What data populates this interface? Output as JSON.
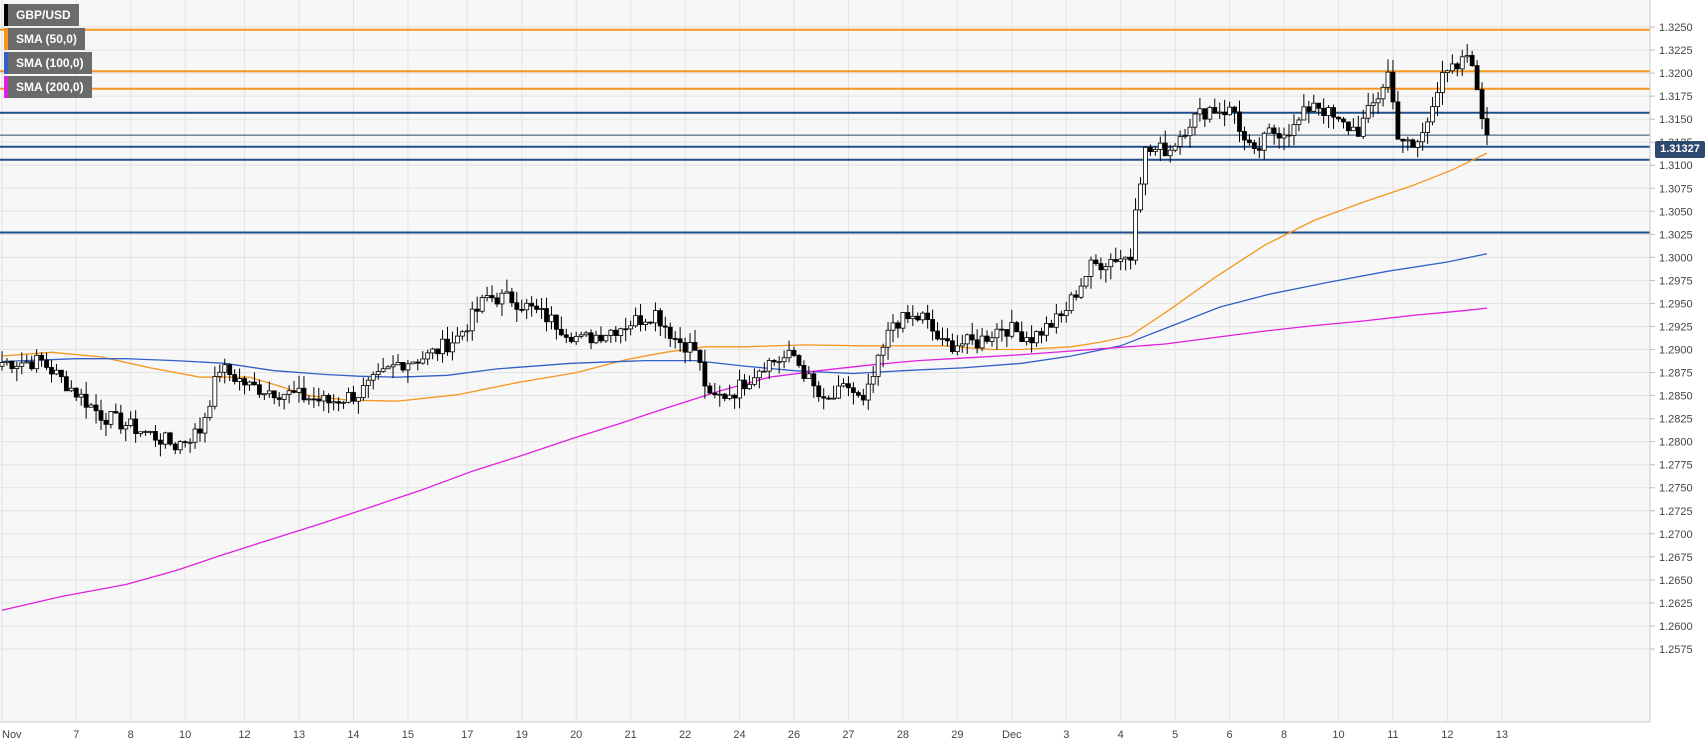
{
  "symbol": "GBP/USD",
  "legend": [
    {
      "label": "GBP/USD",
      "color": "#000000"
    },
    {
      "label": "SMA (50,0)",
      "color": "#f5961e"
    },
    {
      "label": "SMA (100,0)",
      "color": "#3060c8"
    },
    {
      "label": "SMA (200,0)",
      "color": "#e020e0"
    }
  ],
  "last_price_label": "1.31327",
  "chart_data": {
    "type": "candlestick",
    "title": "GBP/USD",
    "ylim": [
      1.2565,
      1.3275
    ],
    "grid": true,
    "y_ticks": [
      "1.3250",
      "1.3225",
      "1.3200",
      "1.3175",
      "1.3150",
      "1.3125",
      "1.3100",
      "1.3075",
      "1.3050",
      "1.3025",
      "1.3000",
      "1.2975",
      "1.2950",
      "1.2925",
      "1.2900",
      "1.2875",
      "1.2850",
      "1.2825",
      "1.2800",
      "1.2775",
      "1.2750",
      "1.2725",
      "1.2700",
      "1.2675",
      "1.2650",
      "1.2625",
      "1.2600",
      "1.2575"
    ],
    "x_ticks": [
      {
        "label": "Nov",
        "i": 0
      },
      {
        "label": "7",
        "i": 15
      },
      {
        "label": "8",
        "i": 26
      },
      {
        "label": "10",
        "i": 37
      },
      {
        "label": "12",
        "i": 49
      },
      {
        "label": "13",
        "i": 60
      },
      {
        "label": "14",
        "i": 71
      },
      {
        "label": "15",
        "i": 82
      },
      {
        "label": "17",
        "i": 94
      },
      {
        "label": "19",
        "i": 105
      },
      {
        "label": "20",
        "i": 116
      },
      {
        "label": "21",
        "i": 127
      },
      {
        "label": "22",
        "i": 138
      },
      {
        "label": "24",
        "i": 149
      },
      {
        "label": "26",
        "i": 160
      },
      {
        "label": "27",
        "i": 171
      },
      {
        "label": "28",
        "i": 182
      },
      {
        "label": "29",
        "i": 193
      },
      {
        "label": "Dec",
        "i": 204
      },
      {
        "label": "3",
        "i": 215
      },
      {
        "label": "4",
        "i": 226
      },
      {
        "label": "5",
        "i": 237
      },
      {
        "label": "6",
        "i": 248
      },
      {
        "label": "8",
        "i": 259
      },
      {
        "label": "10",
        "i": 270
      },
      {
        "label": "11",
        "i": 281
      },
      {
        "label": "12",
        "i": 292
      },
      {
        "label": "13",
        "i": 303
      }
    ],
    "horizontal_levels": [
      {
        "value": 1.3247,
        "color": "#f5961e"
      },
      {
        "value": 1.3202,
        "color": "#f5961e"
      },
      {
        "value": 1.3183,
        "color": "#f5961e"
      },
      {
        "value": 1.3157,
        "color": "#1f4e8c"
      },
      {
        "value": 1.312,
        "color": "#1f4e8c"
      },
      {
        "value": 1.3106,
        "color": "#1f4e8c"
      },
      {
        "value": 1.3027,
        "color": "#1f4e8c"
      }
    ],
    "last_price": 1.31327,
    "anchors": [
      {
        "i": 0,
        "c": 1.2886
      },
      {
        "i": 8,
        "c": 1.2887
      },
      {
        "i": 14,
        "c": 1.2858
      },
      {
        "i": 20,
        "c": 1.2829
      },
      {
        "i": 30,
        "c": 1.2808
      },
      {
        "i": 35,
        "c": 1.2796
      },
      {
        "i": 40,
        "c": 1.2812
      },
      {
        "i": 44,
        "c": 1.288
      },
      {
        "i": 50,
        "c": 1.286
      },
      {
        "i": 58,
        "c": 1.2852
      },
      {
        "i": 66,
        "c": 1.2843
      },
      {
        "i": 72,
        "c": 1.2852
      },
      {
        "i": 80,
        "c": 1.2885
      },
      {
        "i": 86,
        "c": 1.2893
      },
      {
        "i": 92,
        "c": 1.2913
      },
      {
        "i": 98,
        "c": 1.2957
      },
      {
        "i": 103,
        "c": 1.2955
      },
      {
        "i": 110,
        "c": 1.2935
      },
      {
        "i": 117,
        "c": 1.291
      },
      {
        "i": 124,
        "c": 1.2923
      },
      {
        "i": 132,
        "c": 1.294
      },
      {
        "i": 136,
        "c": 1.2912
      },
      {
        "i": 140,
        "c": 1.29
      },
      {
        "i": 143,
        "c": 1.2845
      },
      {
        "i": 148,
        "c": 1.2855
      },
      {
        "i": 154,
        "c": 1.2885
      },
      {
        "i": 160,
        "c": 1.2893
      },
      {
        "i": 166,
        "c": 1.284
      },
      {
        "i": 171,
        "c": 1.286
      },
      {
        "i": 174,
        "c": 1.284
      },
      {
        "i": 180,
        "c": 1.293
      },
      {
        "i": 186,
        "c": 1.2935
      },
      {
        "i": 190,
        "c": 1.2905
      },
      {
        "i": 197,
        "c": 1.2908
      },
      {
        "i": 202,
        "c": 1.2925
      },
      {
        "i": 208,
        "c": 1.2913
      },
      {
        "i": 214,
        "c": 1.2935
      },
      {
        "i": 220,
        "c": 1.299
      },
      {
        "i": 225,
        "c": 1.3
      },
      {
        "i": 228,
        "c": 1.3
      },
      {
        "i": 229,
        "c": 1.306
      },
      {
        "i": 231,
        "c": 1.3115
      },
      {
        "i": 236,
        "c": 1.3118
      },
      {
        "i": 240,
        "c": 1.3148
      },
      {
        "i": 244,
        "c": 1.3162
      },
      {
        "i": 249,
        "c": 1.3158
      },
      {
        "i": 251,
        "c": 1.3125
      },
      {
        "i": 253,
        "c": 1.311
      },
      {
        "i": 256,
        "c": 1.3135
      },
      {
        "i": 261,
        "c": 1.314
      },
      {
        "i": 265,
        "c": 1.317
      },
      {
        "i": 270,
        "c": 1.3145
      },
      {
        "i": 274,
        "c": 1.3138
      },
      {
        "i": 278,
        "c": 1.3175
      },
      {
        "i": 280,
        "c": 1.32
      },
      {
        "i": 282,
        "c": 1.3135
      },
      {
        "i": 285,
        "c": 1.3115
      },
      {
        "i": 288,
        "c": 1.3145
      },
      {
        "i": 291,
        "c": 1.3207
      },
      {
        "i": 294,
        "c": 1.32
      },
      {
        "i": 296,
        "c": 1.322
      },
      {
        "i": 298,
        "c": 1.3183
      },
      {
        "i": 300,
        "c": 1.3133
      }
    ],
    "sma50": [
      [
        0,
        1.2893
      ],
      [
        10,
        1.2897
      ],
      [
        20,
        1.2892
      ],
      [
        30,
        1.288
      ],
      [
        40,
        1.287
      ],
      [
        50,
        1.287
      ],
      [
        55,
        1.2862
      ],
      [
        62,
        1.285
      ],
      [
        70,
        1.2845
      ],
      [
        80,
        1.2844
      ],
      [
        92,
        1.2851
      ],
      [
        104,
        1.2864
      ],
      [
        116,
        1.2875
      ],
      [
        126,
        1.2889
      ],
      [
        134,
        1.2897
      ],
      [
        142,
        1.2903
      ],
      [
        150,
        1.2903
      ],
      [
        162,
        1.2905
      ],
      [
        174,
        1.2904
      ],
      [
        182,
        1.2904
      ],
      [
        190,
        1.2904
      ],
      [
        200,
        1.29
      ],
      [
        206,
        1.29
      ],
      [
        216,
        1.2903
      ],
      [
        222,
        1.2908
      ],
      [
        228,
        1.2915
      ],
      [
        235,
        1.294
      ],
      [
        245,
        1.2978
      ],
      [
        255,
        1.3013
      ],
      [
        265,
        1.304
      ],
      [
        275,
        1.306
      ],
      [
        285,
        1.3078
      ],
      [
        293,
        1.3095
      ],
      [
        300,
        1.3113
      ]
    ],
    "sma100": [
      [
        0,
        1.2887
      ],
      [
        15,
        1.289
      ],
      [
        25,
        1.289
      ],
      [
        35,
        1.2888
      ],
      [
        45,
        1.2885
      ],
      [
        55,
        1.2877
      ],
      [
        65,
        1.2873
      ],
      [
        72,
        1.2871
      ],
      [
        80,
        1.287
      ],
      [
        90,
        1.2872
      ],
      [
        100,
        1.2879
      ],
      [
        115,
        1.2885
      ],
      [
        130,
        1.2888
      ],
      [
        140,
        1.2888
      ],
      [
        150,
        1.2882
      ],
      [
        160,
        1.2877
      ],
      [
        172,
        1.2874
      ],
      [
        182,
        1.2877
      ],
      [
        194,
        1.288
      ],
      [
        206,
        1.2885
      ],
      [
        216,
        1.2893
      ],
      [
        226,
        1.2904
      ],
      [
        236,
        1.2925
      ],
      [
        246,
        1.2946
      ],
      [
        256,
        1.296
      ],
      [
        268,
        1.2973
      ],
      [
        280,
        1.2985
      ],
      [
        292,
        1.2995
      ],
      [
        300,
        1.3004
      ]
    ],
    "sma200": [
      [
        0,
        1.2617
      ],
      [
        12,
        1.2632
      ],
      [
        25,
        1.2645
      ],
      [
        35,
        1.266
      ],
      [
        45,
        1.2678
      ],
      [
        55,
        1.2695
      ],
      [
        65,
        1.2712
      ],
      [
        75,
        1.273
      ],
      [
        85,
        1.2748
      ],
      [
        95,
        1.2768
      ],
      [
        105,
        1.2785
      ],
      [
        115,
        1.2803
      ],
      [
        125,
        1.282
      ],
      [
        135,
        1.2838
      ],
      [
        145,
        1.2855
      ],
      [
        155,
        1.287
      ],
      [
        165,
        1.2877
      ],
      [
        175,
        1.2883
      ],
      [
        185,
        1.2888
      ],
      [
        195,
        1.2891
      ],
      [
        205,
        1.2894
      ],
      [
        215,
        1.2898
      ],
      [
        225,
        1.2902
      ],
      [
        235,
        1.2906
      ],
      [
        245,
        1.2913
      ],
      [
        255,
        1.292
      ],
      [
        265,
        1.2926
      ],
      [
        275,
        1.2931
      ],
      [
        285,
        1.2937
      ],
      [
        295,
        1.2942
      ],
      [
        300,
        1.2945
      ]
    ]
  }
}
